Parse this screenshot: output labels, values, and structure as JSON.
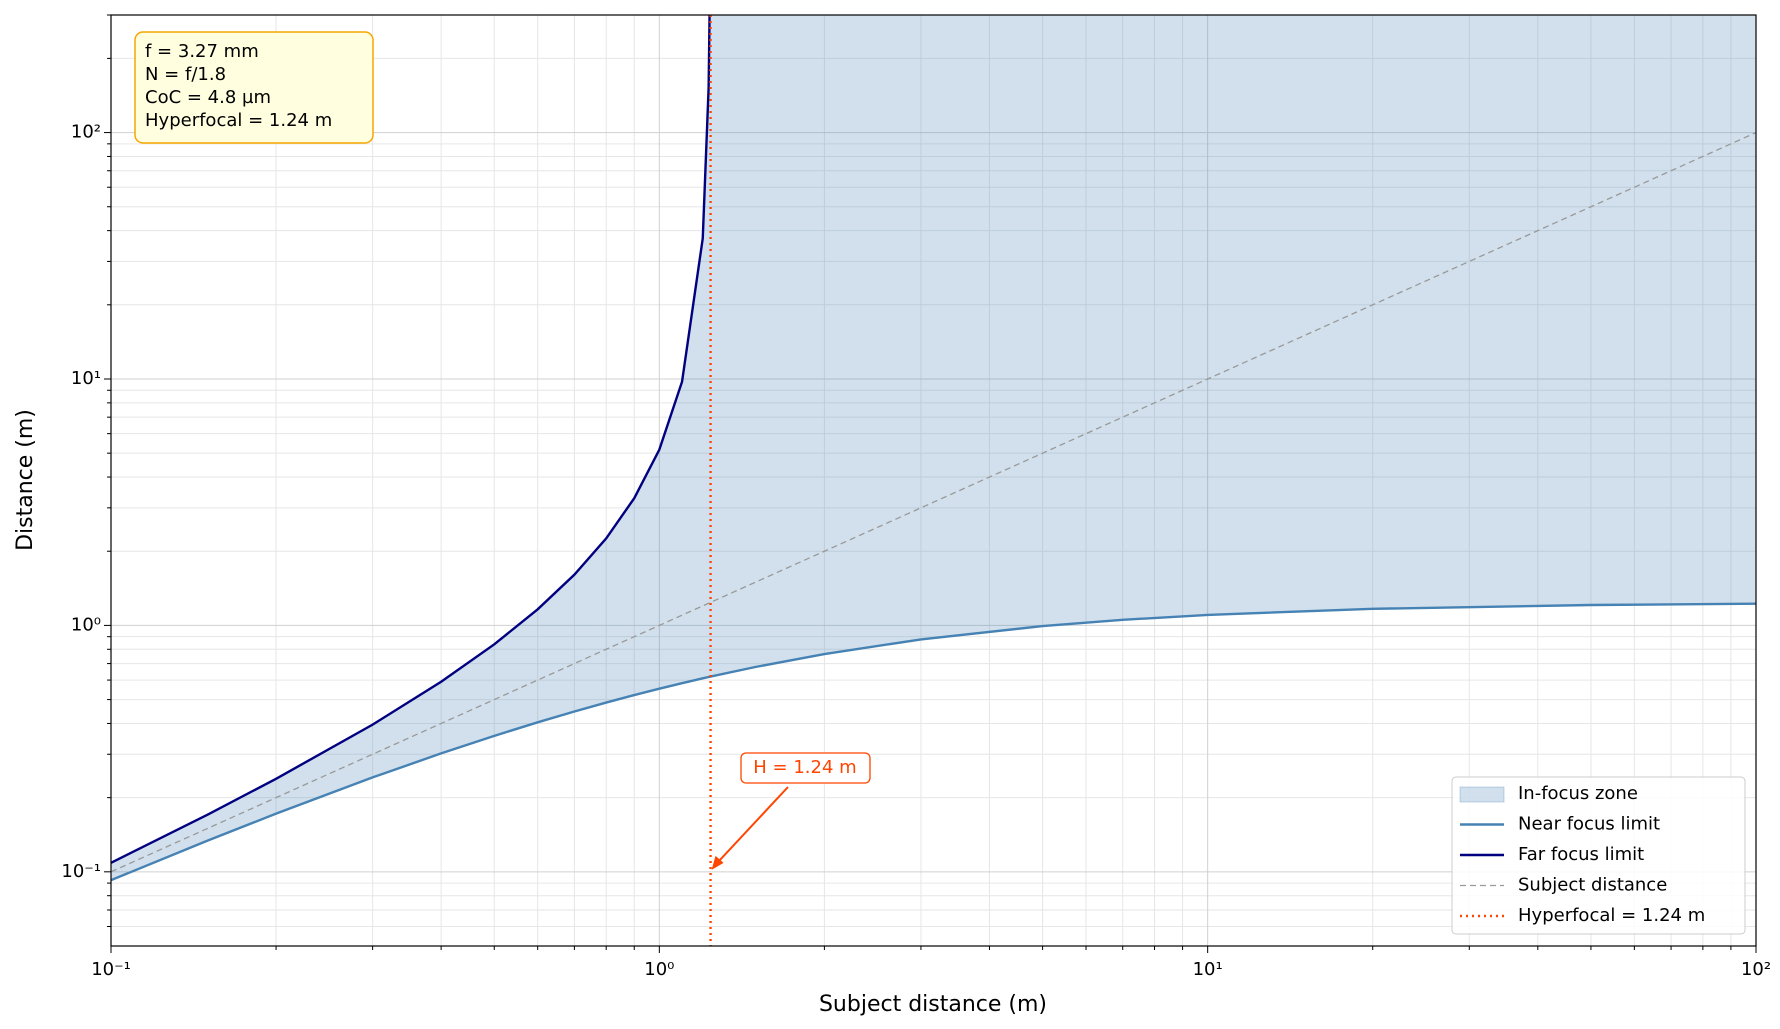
{
  "chart_data": {
    "type": "line",
    "xlabel": "Subject distance (m)",
    "ylabel": "Distance (m)",
    "log_x": true,
    "log_y": true,
    "grid": true,
    "xlim": [
      0.1,
      100
    ],
    "ylim": [
      0.05,
      300
    ],
    "xticks": [
      {
        "value": 0.1,
        "label": "10⁻¹"
      },
      {
        "value": 1,
        "label": "10⁰"
      },
      {
        "value": 10,
        "label": "10¹"
      },
      {
        "value": 100,
        "label": "10²"
      }
    ],
    "yticks": [
      {
        "value": 0.1,
        "label": "10⁻¹"
      },
      {
        "value": 1,
        "label": "10⁰"
      },
      {
        "value": 10,
        "label": "10¹"
      },
      {
        "value": 100,
        "label": "10²"
      }
    ],
    "xminorticks": [
      0.2,
      0.3,
      0.4,
      0.5,
      0.6,
      0.7,
      0.8,
      0.9,
      2,
      3,
      4,
      5,
      6,
      7,
      8,
      9,
      20,
      30,
      40,
      50,
      60,
      70,
      80,
      90
    ],
    "yminorticks": [
      0.06,
      0.07,
      0.08,
      0.09,
      0.2,
      0.3,
      0.4,
      0.5,
      0.6,
      0.7,
      0.8,
      0.9,
      2,
      3,
      4,
      5,
      6,
      7,
      8,
      9,
      20,
      30,
      40,
      50,
      60,
      70,
      80,
      90,
      200,
      300
    ],
    "x": [
      0.1,
      0.15,
      0.2,
      0.3,
      0.4,
      0.5,
      0.6,
      0.7,
      0.8,
      0.9,
      1.0,
      1.1,
      1.2,
      1.23,
      1.235,
      1.24,
      1.5,
      2,
      3,
      5,
      7,
      10,
      20,
      50,
      100
    ],
    "fill": {
      "name": "In-focus zone",
      "color": "#4682b4"
    },
    "series": [
      {
        "name": "Near focus limit",
        "color": "#4682b4",
        "style": "solid",
        "values": [
          0.0925,
          0.1338,
          0.1722,
          0.2416,
          0.3024,
          0.3563,
          0.4043,
          0.4474,
          0.4863,
          0.5215,
          0.5536,
          0.5829,
          0.6098,
          0.6175,
          0.6188,
          0.62,
          0.6788,
          0.7654,
          0.8774,
          0.9936,
          1.0534,
          1.1032,
          1.1676,
          1.21,
          1.2248
        ]
      },
      {
        "name": "Far focus limit",
        "color": "#000080",
        "style": "solid",
        "values": [
          0.1088,
          0.1706,
          0.2385,
          0.3957,
          0.5905,
          0.8378,
          1.1625,
          1.6074,
          2.2545,
          3.2824,
          5.1667,
          9.743,
          37.2,
          152.5,
          306.3,
          null,
          null,
          null,
          null,
          null,
          null,
          null,
          null,
          null,
          null
        ]
      },
      {
        "name": "Subject distance",
        "color": "#999999",
        "style": "dashed",
        "values": [
          0.1,
          0.15,
          0.2,
          0.3,
          0.4,
          0.5,
          0.6,
          0.7,
          0.8,
          0.9,
          1.0,
          1.1,
          1.2,
          1.23,
          1.235,
          1.24,
          1.5,
          2,
          3,
          5,
          7,
          10,
          20,
          50,
          100
        ]
      }
    ],
    "vline": {
      "name": "Hyperfocal = 1.24 m",
      "value": 1.24,
      "color": "#ff4500"
    },
    "annotation": {
      "text": "H = 1.24 m",
      "xy": [
        1.24,
        0.1
      ],
      "color": "#ff4500"
    },
    "info_box": [
      "f = 3.27 mm",
      "N = f/1.8",
      "CoC = 4.8 µm",
      "Hyperfocal = 1.24 m"
    ],
    "legend_position": "lower right"
  }
}
